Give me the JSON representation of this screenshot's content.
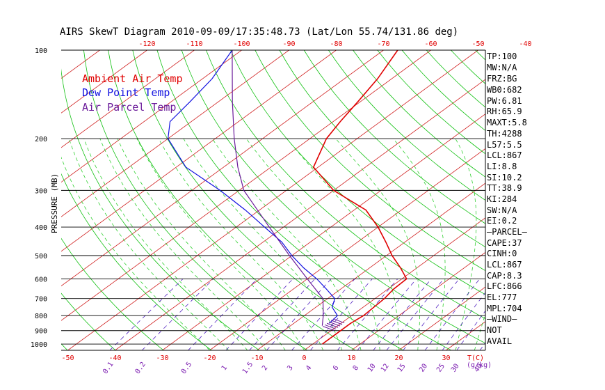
{
  "colors": {
    "ambient": "#e00000",
    "dewpoint": "#1010e0",
    "parcel": "#6a1a9a",
    "isotherm": "#d02020",
    "dry_adiabat": "#10c010",
    "moist_adiabat": "#30d030",
    "mixing_ratio": "#5020c0",
    "isobar": "#000000",
    "wind": "#6a1a9a"
  },
  "chart_data": {
    "type": "line",
    "diagram": "skew-T log-P",
    "title": "AIRS SkewT Diagram 2010-09-09/17:35:48.73 (Lat/Lon 55.74/131.86 deg)",
    "ylabel": "PRESSURE (MB)",
    "ylim_mb": [
      1050,
      100
    ],
    "y_log_scale": true,
    "pressure_ticks": [
      "100",
      "200",
      "300",
      "400",
      "500",
      "600",
      "700",
      "800",
      "900",
      "1000"
    ],
    "top_temp_ticks": [
      "-120",
      "-110",
      "-100",
      "-90",
      "-80",
      "-70",
      "-60",
      "-50",
      "-40"
    ],
    "bottom_temp_ticks": [
      "-50",
      "-40",
      "-30",
      "-20",
      "-10",
      "0",
      "10",
      "20",
      "30"
    ],
    "bottom_temp_unit": "T(C)",
    "mixing_ratio_ticks": [
      "0.1",
      "0.2",
      "0.5",
      "1",
      "1.5",
      "2",
      "3",
      "4",
      "6",
      "8",
      "10",
      "12",
      "15",
      "20",
      "25",
      "30",
      "40"
    ],
    "mixing_ratio_unit": "(g/kg)",
    "legend": [
      "Ambient Air Temp",
      "Dew Point Temp",
      "Air Parcel Temp"
    ],
    "series": [
      {
        "name": "Ambient Air Temp",
        "points": [
          [
            1000,
            2.0
          ],
          [
            925,
            2.0
          ],
          [
            850,
            2.0
          ],
          [
            800,
            2.5
          ],
          [
            700,
            2.0
          ],
          [
            650,
            1.2
          ],
          [
            600,
            1.0
          ],
          [
            550,
            -3.5
          ],
          [
            500,
            -8.8
          ],
          [
            450,
            -14.0
          ],
          [
            400,
            -20.0
          ],
          [
            350,
            -27.5
          ],
          [
            300,
            -40.0
          ],
          [
            250,
            -51.0
          ],
          [
            200,
            -56.5
          ],
          [
            175,
            -58.5
          ],
          [
            150,
            -60.5
          ],
          [
            125,
            -63.0
          ],
          [
            100,
            -67.0
          ]
        ]
      },
      {
        "name": "Dew Point Temp",
        "points": [
          [
            850,
            -2.5
          ],
          [
            800,
            -3.0
          ],
          [
            750,
            -6.5
          ],
          [
            700,
            -8.5
          ],
          [
            650,
            -13.0
          ],
          [
            600,
            -18.0
          ],
          [
            550,
            -24.0
          ],
          [
            500,
            -30.0
          ],
          [
            450,
            -36.0
          ],
          [
            400,
            -44.0
          ],
          [
            350,
            -53.0
          ],
          [
            300,
            -64.0
          ],
          [
            250,
            -78.0
          ],
          [
            200,
            -90.0
          ],
          [
            175,
            -94.5
          ],
          [
            150,
            -96.0
          ],
          [
            125,
            -98.0
          ],
          [
            100,
            -102.0
          ]
        ]
      },
      {
        "name": "Air Parcel Temp",
        "points": [
          [
            866,
            -3.3
          ],
          [
            800,
            -6.0
          ],
          [
            700,
            -11.0
          ],
          [
            600,
            -20.0
          ],
          [
            500,
            -30.5
          ],
          [
            400,
            -43.0
          ],
          [
            300,
            -59.0
          ],
          [
            250,
            -67.0
          ],
          [
            200,
            -76.0
          ],
          [
            150,
            -87.0
          ],
          [
            100,
            -102.0
          ]
        ]
      }
    ],
    "wind_barb_pressures": [
      870,
      860,
      850,
      840,
      830,
      820
    ]
  },
  "indices": [
    "TP:100",
    "MW:N/A",
    "FRZ:BG",
    "WB0:682",
    "PW:6.81",
    "RH:65.9",
    "MAXT:5.8",
    "TH:4288",
    "L57:5.5",
    "LCL:867",
    "LI:8.8",
    "SI:10.2",
    "TT:38.9",
    "KI:284",
    "SW:N/A",
    "EI:0.2",
    "—PARCEL—",
    "CAPE:37",
    "CINH:0",
    "LCL:867",
    "CAP:8.3",
    "LFC:866",
    "EL:777",
    "MPL:704",
    "—WIND—",
    "NOT",
    "AVAIL"
  ]
}
